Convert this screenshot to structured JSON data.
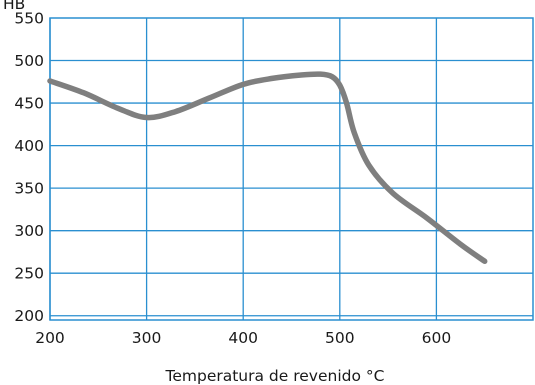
{
  "chart_data": {
    "type": "line",
    "ylabel": "HB",
    "xlabel": "Temperatura de revenido °C",
    "xlim": [
      200,
      700
    ],
    "ylim": [
      195,
      550
    ],
    "x_ticks": [
      200,
      300,
      400,
      500,
      600
    ],
    "y_ticks": [
      200,
      250,
      300,
      350,
      400,
      450,
      500,
      550
    ],
    "grid": true,
    "series": [
      {
        "color": "#7f7f7f",
        "x": [
          200,
          235,
          270,
          300,
          330,
          365,
          400,
          430,
          460,
          480,
          492,
          500,
          507,
          515,
          530,
          555,
          590,
          625,
          650
        ],
        "y": [
          476,
          462,
          444,
          433,
          440,
          456,
          472,
          479,
          483,
          484,
          481,
          471,
          450,
          415,
          377,
          344,
          315,
          284,
          264
        ]
      }
    ]
  }
}
